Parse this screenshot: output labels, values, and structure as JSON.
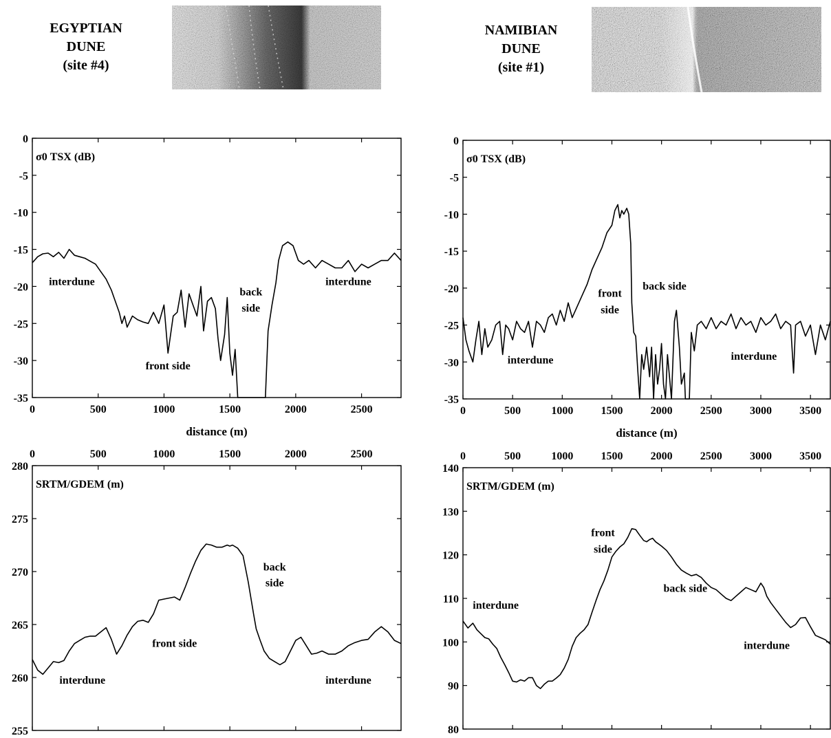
{
  "sites": [
    {
      "lines": [
        "EGYPTIAN",
        "DUNE",
        "(site #4)"
      ]
    },
    {
      "lines": [
        "NAMIBIAN",
        "DUNE",
        "(site #1)"
      ]
    }
  ],
  "chart_data": [
    {
      "type": "line",
      "panel": "egypt-sigma0",
      "title": "σ0 TSX (dB)",
      "xlabel": "distance (m)",
      "ylabel": "",
      "xlim": [
        0,
        2800
      ],
      "ylim": [
        -35,
        0
      ],
      "xticks": [
        0,
        500,
        1000,
        1500,
        2000,
        2500
      ],
      "yticks": [
        0,
        -5,
        -10,
        -15,
        -20,
        -25,
        -30,
        -35
      ],
      "grid": false,
      "annotations": [
        {
          "text": "interdune",
          "x": 300,
          "y": -19.8
        },
        {
          "text": "front side",
          "x": 1030,
          "y": -31.2
        },
        {
          "text": "back",
          "x": 1660,
          "y": -21.2
        },
        {
          "text": "side",
          "x": 1660,
          "y": -23.4
        },
        {
          "text": "interdune",
          "x": 2400,
          "y": -19.8
        }
      ],
      "series": [
        {
          "x": [
            0,
            40,
            80,
            120,
            160,
            200,
            240,
            280,
            320,
            360,
            400,
            440,
            480,
            520,
            560,
            600,
            620,
            640,
            660,
            680,
            700,
            720,
            760,
            800,
            840,
            880,
            920,
            960,
            1000,
            1030,
            1050,
            1070,
            1100,
            1130,
            1160,
            1190,
            1220,
            1250,
            1280,
            1300,
            1330,
            1360,
            1390,
            1410,
            1430,
            1460,
            1480,
            1500,
            1520,
            1540,
            1560,
            1560,
            1770,
            1790,
            1820,
            1850,
            1870,
            1900,
            1940,
            1980,
            2020,
            2060,
            2100,
            2150,
            2200,
            2250,
            2300,
            2350,
            2400,
            2450,
            2500,
            2550,
            2600,
            2650,
            2700,
            2750,
            2800
          ],
          "y": [
            -16.8,
            -16.0,
            -15.6,
            -15.5,
            -16.0,
            -15.4,
            -16.2,
            -15.0,
            -15.8,
            -16.0,
            -16.2,
            -16.6,
            -17.0,
            -18.0,
            -19.0,
            -20.5,
            -21.5,
            -22.5,
            -23.5,
            -25.0,
            -24.0,
            -25.5,
            -24.0,
            -24.5,
            -24.8,
            -25.0,
            -23.5,
            -25.0,
            -22.5,
            -29.0,
            -26.5,
            -24.0,
            -23.5,
            -20.5,
            -25.5,
            -21.0,
            -22.5,
            -24.0,
            -20.0,
            -26.0,
            -22.0,
            -21.5,
            -23.0,
            -27.0,
            -30.0,
            -26.5,
            -21.5,
            -29.0,
            -32.0,
            -28.5,
            -35.0,
            -35.0,
            -35.0,
            -26.0,
            -22.5,
            -19.5,
            -16.5,
            -14.5,
            -14.0,
            -14.5,
            -16.5,
            -17.0,
            -16.5,
            -17.5,
            -16.5,
            -17.0,
            -17.5,
            -17.5,
            -16.5,
            -18.0,
            -17.0,
            -17.5,
            -17.0,
            -16.5,
            -16.5,
            -15.5,
            -16.5
          ]
        }
      ]
    },
    {
      "type": "line",
      "panel": "namibia-sigma0",
      "title": "σ0 TSX (dB)",
      "xlabel": "distance (m)",
      "ylabel": "",
      "xlim": [
        0,
        3700
      ],
      "ylim": [
        -35,
        0
      ],
      "xticks": [
        0,
        500,
        1000,
        1500,
        2000,
        2500,
        3000,
        3500
      ],
      "yticks": [
        0,
        -5,
        -10,
        -15,
        -20,
        -25,
        -30,
        -35
      ],
      "grid": false,
      "annotations": [
        {
          "text": "interdune",
          "x": 680,
          "y": -30.2
        },
        {
          "text": "front",
          "x": 1480,
          "y": -21.2
        },
        {
          "text": "side",
          "x": 1480,
          "y": -23.4
        },
        {
          "text": "back side",
          "x": 2030,
          "y": -20.2
        },
        {
          "text": "interdune",
          "x": 2930,
          "y": -29.7
        }
      ],
      "series": [
        {
          "x": [
            0,
            30,
            60,
            100,
            130,
            160,
            190,
            220,
            250,
            290,
            330,
            370,
            400,
            430,
            460,
            500,
            540,
            580,
            620,
            660,
            700,
            740,
            780,
            820,
            860,
            900,
            940,
            980,
            1020,
            1060,
            1100,
            1150,
            1200,
            1250,
            1300,
            1350,
            1400,
            1450,
            1500,
            1530,
            1560,
            1580,
            1600,
            1620,
            1650,
            1670,
            1690,
            1700,
            1720,
            1740,
            1760,
            1780,
            1800,
            1820,
            1850,
            1880,
            1900,
            1920,
            1940,
            1960,
            1980,
            2000,
            2020,
            2040,
            2060,
            2080,
            2100,
            2130,
            2150,
            2180,
            2200,
            2230,
            2240,
            2280,
            2300,
            2330,
            2360,
            2400,
            2450,
            2500,
            2550,
            2600,
            2650,
            2700,
            2750,
            2800,
            2850,
            2900,
            2950,
            3000,
            3050,
            3100,
            3150,
            3200,
            3250,
            3300,
            3330,
            3350,
            3400,
            3450,
            3500,
            3550,
            3600,
            3650,
            3700
          ],
          "y": [
            -24.0,
            -27.0,
            -28.5,
            -30.0,
            -27.0,
            -24.5,
            -29.0,
            -25.5,
            -28.0,
            -27.0,
            -25.0,
            -24.5,
            -29.0,
            -25.0,
            -25.5,
            -27.0,
            -24.5,
            -25.5,
            -26.0,
            -24.5,
            -28.0,
            -24.5,
            -25.0,
            -26.0,
            -24.0,
            -23.5,
            -25.0,
            -23.0,
            -24.5,
            -22.0,
            -24.0,
            -22.5,
            -21.0,
            -19.5,
            -17.5,
            -16.0,
            -14.5,
            -12.5,
            -11.5,
            -9.5,
            -8.7,
            -10.5,
            -9.5,
            -10.0,
            -9.2,
            -10.0,
            -14.0,
            -22.0,
            -26.0,
            -26.5,
            -31.0,
            -35.0,
            -29.0,
            -31.0,
            -28.0,
            -32.0,
            -28.0,
            -35.0,
            -29.0,
            -33.0,
            -31.0,
            -27.5,
            -33.0,
            -35.0,
            -29.0,
            -32.0,
            -35.0,
            -24.5,
            -23.0,
            -28.0,
            -33.0,
            -31.5,
            -35.0,
            -35.0,
            -26.0,
            -28.5,
            -25.0,
            -24.5,
            -25.5,
            -24.0,
            -25.5,
            -24.5,
            -25.0,
            -23.5,
            -25.5,
            -24.0,
            -25.0,
            -24.5,
            -26.0,
            -24.0,
            -25.0,
            -24.5,
            -23.5,
            -25.5,
            -24.5,
            -25.0,
            -31.5,
            -25.0,
            -24.5,
            -26.5,
            -25.0,
            -29.0,
            -25.0,
            -27.0,
            -24.5
          ]
        }
      ]
    },
    {
      "type": "line",
      "panel": "egypt-dem",
      "title": "SRTM/GDEM (m)",
      "xlabel": "",
      "ylabel": "",
      "xlim": [
        0,
        2800
      ],
      "ylim": [
        255,
        280
      ],
      "xticks": [
        0,
        500,
        1000,
        1500,
        2000,
        2500
      ],
      "yticks": [
        280,
        275,
        270,
        265,
        260,
        255
      ],
      "grid": false,
      "annotations": [
        {
          "text": "interdune",
          "x": 380,
          "y": 259.4
        },
        {
          "text": "front side",
          "x": 1080,
          "y": 262.9
        },
        {
          "text": "back",
          "x": 1840,
          "y": 270.1
        },
        {
          "text": "side",
          "x": 1840,
          "y": 268.6
        },
        {
          "text": "interdune",
          "x": 2400,
          "y": 259.4
        }
      ],
      "series": [
        {
          "x": [
            0,
            40,
            80,
            120,
            160,
            200,
            240,
            280,
            320,
            360,
            400,
            440,
            480,
            520,
            560,
            600,
            640,
            680,
            720,
            760,
            800,
            840,
            880,
            920,
            960,
            1000,
            1040,
            1080,
            1120,
            1160,
            1200,
            1240,
            1280,
            1320,
            1360,
            1400,
            1440,
            1480,
            1500,
            1520,
            1560,
            1600,
            1640,
            1680,
            1700,
            1730,
            1760,
            1800,
            1840,
            1880,
            1920,
            1960,
            2000,
            2040,
            2080,
            2120,
            2160,
            2200,
            2250,
            2300,
            2350,
            2400,
            2450,
            2500,
            2550,
            2600,
            2650,
            2700,
            2750,
            2800
          ],
          "y": [
            261.7,
            260.7,
            260.3,
            260.9,
            261.5,
            261.4,
            261.6,
            262.5,
            263.2,
            263.5,
            263.8,
            263.9,
            263.9,
            264.3,
            264.7,
            263.6,
            262.2,
            263.0,
            264.0,
            264.8,
            265.3,
            265.4,
            265.2,
            266.0,
            267.3,
            267.4,
            267.5,
            267.6,
            267.3,
            268.5,
            269.8,
            271.0,
            272.0,
            272.6,
            272.5,
            272.3,
            272.3,
            272.5,
            272.4,
            272.5,
            272.2,
            271.5,
            269.0,
            266.0,
            264.6,
            263.5,
            262.5,
            261.8,
            261.5,
            261.2,
            261.5,
            262.5,
            263.5,
            263.8,
            263.0,
            262.2,
            262.3,
            262.5,
            262.2,
            262.2,
            262.5,
            263.0,
            263.3,
            263.5,
            263.6,
            264.3,
            264.8,
            264.3,
            263.5,
            263.2
          ]
        }
      ]
    },
    {
      "type": "line",
      "panel": "namibia-dem",
      "title": "SRTM/GDEM (m)",
      "xlabel": "",
      "ylabel": "",
      "xlim": [
        0,
        3700
      ],
      "ylim": [
        80,
        140
      ],
      "xticks": [
        0,
        500,
        1000,
        1500,
        2000,
        2500,
        3000,
        3500
      ],
      "yticks": [
        140,
        130,
        120,
        110,
        100,
        90,
        80
      ],
      "grid": false,
      "annotations": [
        {
          "text": "interdune",
          "x": 330,
          "y": 107.6
        },
        {
          "text": "front",
          "x": 1410,
          "y": 124.3
        },
        {
          "text": "side",
          "x": 1410,
          "y": 120.5
        },
        {
          "text": "back side",
          "x": 2240,
          "y": 111.5
        },
        {
          "text": "interdune",
          "x": 3060,
          "y": 98.4
        }
      ],
      "series": [
        {
          "x": [
            0,
            50,
            100,
            140,
            180,
            220,
            260,
            300,
            340,
            380,
            420,
            460,
            500,
            540,
            580,
            620,
            660,
            700,
            740,
            780,
            820,
            860,
            900,
            940,
            980,
            1020,
            1060,
            1100,
            1140,
            1180,
            1220,
            1260,
            1300,
            1340,
            1380,
            1420,
            1460,
            1500,
            1540,
            1580,
            1620,
            1660,
            1700,
            1740,
            1780,
            1820,
            1850,
            1880,
            1910,
            1940,
            1970,
            2000,
            2050,
            2100,
            2150,
            2200,
            2250,
            2300,
            2350,
            2400,
            2450,
            2500,
            2550,
            2600,
            2650,
            2700,
            2750,
            2800,
            2850,
            2900,
            2950,
            3000,
            3030,
            3060,
            3100,
            3150,
            3200,
            3250,
            3300,
            3350,
            3400,
            3450,
            3500,
            3550,
            3600,
            3650,
            3700
          ],
          "y": [
            104.8,
            103.2,
            104.3,
            102.8,
            101.9,
            101.0,
            100.7,
            99.5,
            98.5,
            96.5,
            94.8,
            93.0,
            91.0,
            90.8,
            91.3,
            91.0,
            91.8,
            91.8,
            90.0,
            89.3,
            90.3,
            91.0,
            91.0,
            91.7,
            92.5,
            94.0,
            96.0,
            99.0,
            101.0,
            102.0,
            102.8,
            104.0,
            106.8,
            109.5,
            112.0,
            114.0,
            116.5,
            119.5,
            120.8,
            121.8,
            122.5,
            124.0,
            126.0,
            125.8,
            124.5,
            123.3,
            123.0,
            123.5,
            123.8,
            123.0,
            122.5,
            122.0,
            121.0,
            119.5,
            117.8,
            116.5,
            115.8,
            115.2,
            115.5,
            114.8,
            113.5,
            112.5,
            112.0,
            111.0,
            110.0,
            109.5,
            110.5,
            111.5,
            112.5,
            112.0,
            111.5,
            113.5,
            112.5,
            110.5,
            109.0,
            107.5,
            106.0,
            104.5,
            103.3,
            104.0,
            105.5,
            105.6,
            103.5,
            101.5,
            101.0,
            100.5,
            99.5
          ]
        }
      ]
    }
  ]
}
